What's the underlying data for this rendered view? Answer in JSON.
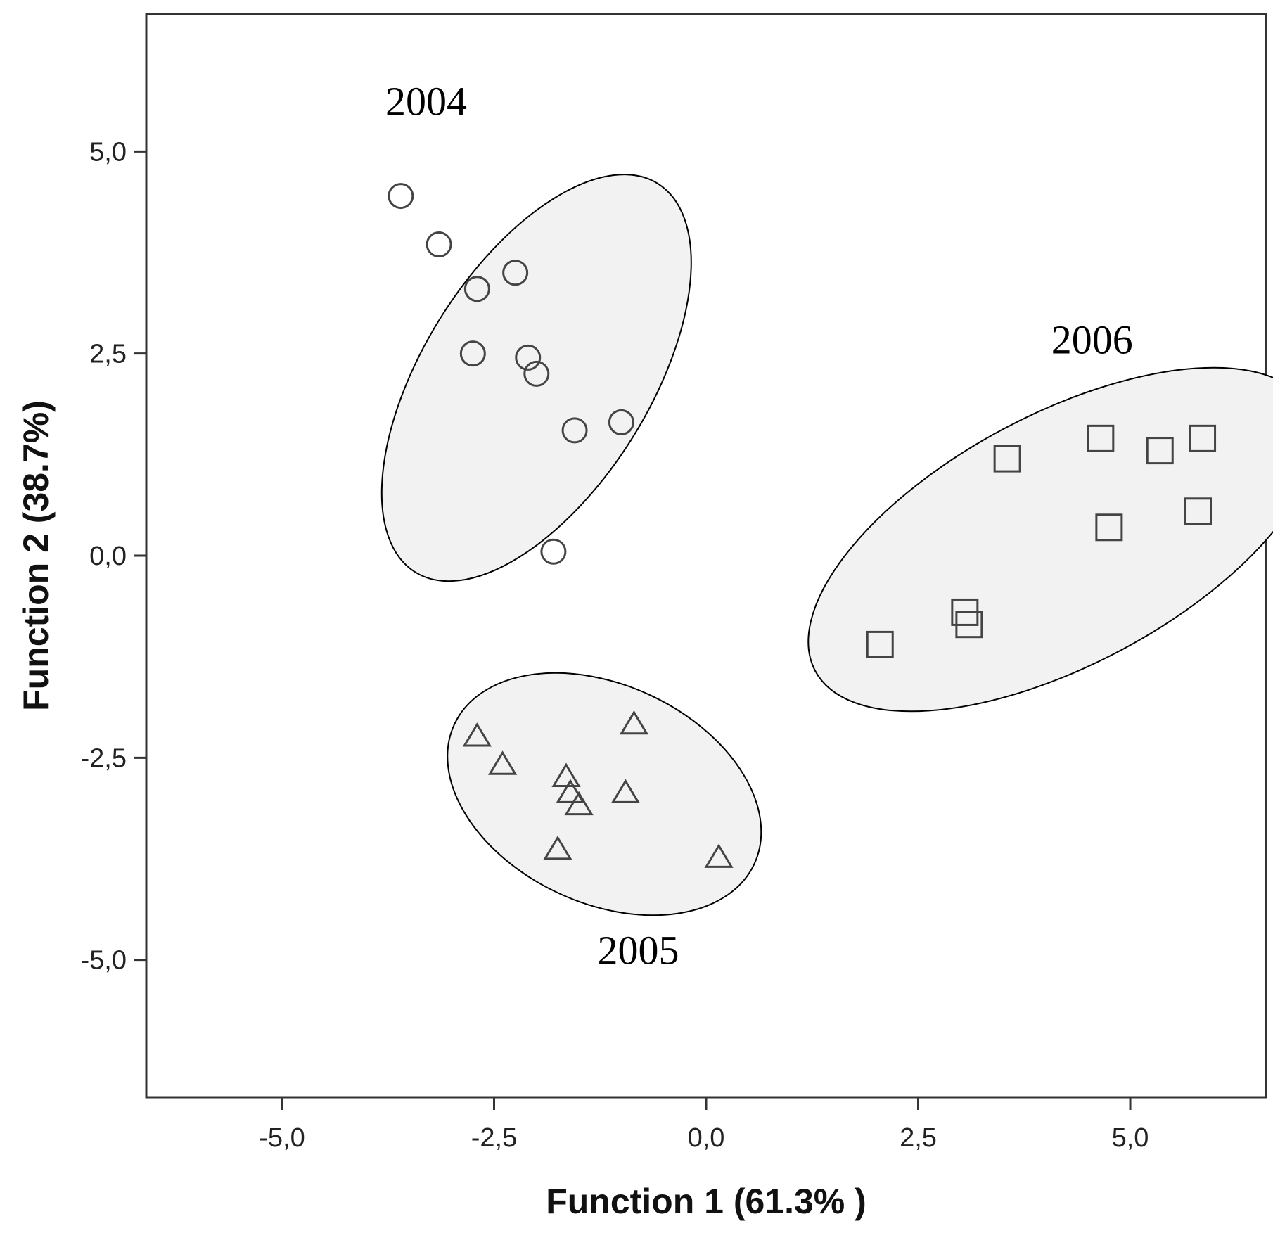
{
  "chart_data": {
    "type": "scatter",
    "xlabel": "Function 1 (61.3% )",
    "ylabel": "Function 2 (38.7%)",
    "xlim": [
      -6.6,
      6.6
    ],
    "ylim": [
      -6.7,
      6.7
    ],
    "x_ticks": [
      -5.0,
      -2.5,
      0.0,
      2.5,
      5.0
    ],
    "x_tick_labels": [
      "-5,0",
      "-2,5",
      "0,0",
      "2,5",
      "5,0"
    ],
    "y_ticks": [
      5.0,
      2.5,
      0.0,
      -2.5,
      -5.0
    ],
    "y_tick_labels": [
      "5,0",
      "2,5",
      "0,0",
      "-2,5",
      "-5,0"
    ],
    "grid": false,
    "series": [
      {
        "name": "2004",
        "marker": "circle",
        "points": [
          [
            -3.6,
            4.45
          ],
          [
            -3.15,
            3.85
          ],
          [
            -2.25,
            3.5
          ],
          [
            -2.7,
            3.3
          ],
          [
            -2.75,
            2.5
          ],
          [
            -2.1,
            2.45
          ],
          [
            -2.0,
            2.25
          ],
          [
            -1.0,
            1.65
          ],
          [
            -1.55,
            1.55
          ],
          [
            -1.8,
            0.05
          ]
        ],
        "region": {
          "cx": -2.0,
          "cy": 2.2,
          "rx": 2.7,
          "ry": 1.4,
          "angle_deg": 58
        }
      },
      {
        "name": "2005",
        "marker": "triangle",
        "points": [
          [
            -2.7,
            -2.25
          ],
          [
            -2.4,
            -2.6
          ],
          [
            -0.85,
            -2.1
          ],
          [
            -1.65,
            -2.75
          ],
          [
            -1.6,
            -2.95
          ],
          [
            -1.5,
            -3.1
          ],
          [
            -0.95,
            -2.95
          ],
          [
            -1.75,
            -3.65
          ],
          [
            0.15,
            -3.75
          ]
        ],
        "region": {
          "cx": -1.2,
          "cy": -2.95,
          "rx": 1.95,
          "ry": 1.35,
          "angle_deg": -25
        }
      },
      {
        "name": "2006",
        "marker": "square",
        "points": [
          [
            3.55,
            1.2
          ],
          [
            4.65,
            1.45
          ],
          [
            5.35,
            1.3
          ],
          [
            5.85,
            1.45
          ],
          [
            5.8,
            0.55
          ],
          [
            4.75,
            0.35
          ],
          [
            3.05,
            -0.7
          ],
          [
            3.1,
            -0.85
          ],
          [
            2.05,
            -1.1
          ]
        ],
        "region": {
          "cx": 4.2,
          "cy": 0.2,
          "rx": 3.3,
          "ry": 1.55,
          "angle_deg": 28
        }
      }
    ],
    "annotations": [
      {
        "text": "2004",
        "x": -3.3,
        "y": 5.45
      },
      {
        "text": "2006",
        "x": 4.55,
        "y": 2.5
      },
      {
        "text": "2005",
        "x": -0.8,
        "y": -5.05
      }
    ]
  }
}
